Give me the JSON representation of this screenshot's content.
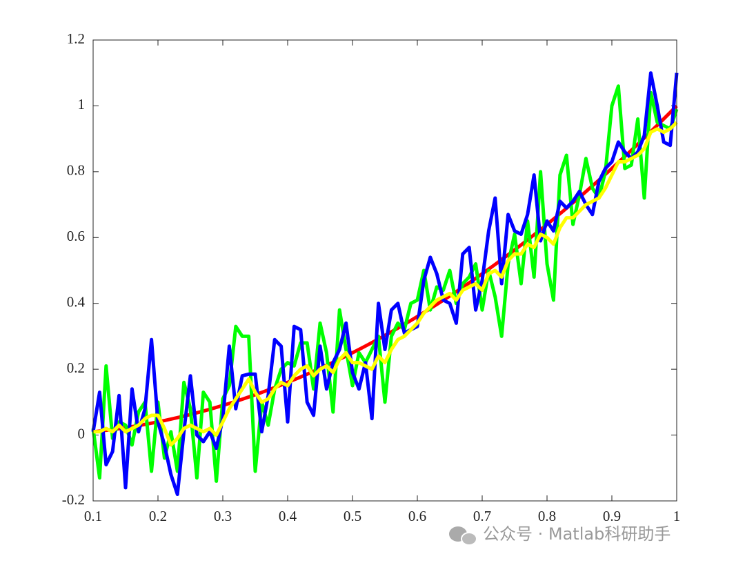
{
  "chart_data": {
    "type": "line",
    "x": [
      0.1,
      0.11,
      0.12,
      0.13,
      0.14,
      0.15,
      0.16,
      0.17,
      0.18,
      0.19,
      0.2,
      0.21,
      0.22,
      0.23,
      0.24,
      0.25,
      0.26,
      0.27,
      0.28,
      0.29,
      0.3,
      0.31,
      0.32,
      0.33,
      0.34,
      0.35,
      0.36,
      0.37,
      0.38,
      0.39,
      0.4,
      0.41,
      0.42,
      0.43,
      0.44,
      0.45,
      0.46,
      0.47,
      0.48,
      0.49,
      0.5,
      0.51,
      0.52,
      0.53,
      0.54,
      0.55,
      0.56,
      0.57,
      0.58,
      0.59,
      0.6,
      0.61,
      0.62,
      0.63,
      0.64,
      0.65,
      0.66,
      0.67,
      0.68,
      0.69,
      0.7,
      0.71,
      0.72,
      0.73,
      0.74,
      0.75,
      0.76,
      0.77,
      0.78,
      0.79,
      0.8,
      0.81,
      0.82,
      0.83,
      0.84,
      0.85,
      0.86,
      0.87,
      0.88,
      0.89,
      0.9,
      0.91,
      0.92,
      0.93,
      0.94,
      0.95,
      0.96,
      0.97,
      0.98,
      0.99,
      1
    ],
    "series": [
      {
        "color": "#ff0000",
        "values": [
          0.01,
          0.0121,
          0.0144,
          0.0169,
          0.0196,
          0.0225,
          0.0256,
          0.0289,
          0.0324,
          0.0361,
          0.04,
          0.0441,
          0.0484,
          0.0529,
          0.0576,
          0.0625,
          0.0676,
          0.0729,
          0.0784,
          0.0841,
          0.09,
          0.0961,
          0.1024,
          0.1089,
          0.1156,
          0.1225,
          0.1296,
          0.1369,
          0.1444,
          0.1521,
          0.16,
          0.1681,
          0.1764,
          0.1849,
          0.1936,
          0.2025,
          0.2116,
          0.2209,
          0.2304,
          0.2401,
          0.25,
          0.2601,
          0.2704,
          0.2809,
          0.2916,
          0.3025,
          0.3136,
          0.3249,
          0.3364,
          0.3481,
          0.36,
          0.3721,
          0.3844,
          0.3969,
          0.4096,
          0.4225,
          0.4356,
          0.4489,
          0.4624,
          0.4761,
          0.49,
          0.5041,
          0.5184,
          0.5329,
          0.5476,
          0.5625,
          0.5776,
          0.5929,
          0.6084,
          0.6241,
          0.64,
          0.6561,
          0.6724,
          0.6889,
          0.7056,
          0.7225,
          0.7396,
          0.7569,
          0.7744,
          0.7921,
          0.81,
          0.8281,
          0.8464,
          0.8649,
          0.8836,
          0.9025,
          0.9216,
          0.9409,
          0.9604,
          0.9801,
          1.0
        ]
      },
      {
        "color": "#00ff00",
        "values": [
          0.02,
          -0.13,
          0.21,
          -0.01,
          0.04,
          0.03,
          -0.03,
          0.07,
          0.1,
          -0.11,
          0.1,
          -0.07,
          0.01,
          -0.11,
          0.16,
          0.08,
          -0.13,
          0.13,
          0.1,
          -0.14,
          0.11,
          0.15,
          0.33,
          0.3,
          0.3,
          -0.11,
          0.1,
          0.03,
          0.14,
          0.2,
          0.22,
          0.21,
          0.28,
          0.28,
          0.14,
          0.34,
          0.25,
          0.07,
          0.38,
          0.26,
          0.15,
          0.25,
          0.22,
          0.26,
          0.3,
          0.1,
          0.3,
          0.34,
          0.32,
          0.4,
          0.41,
          0.5,
          0.38,
          0.45,
          0.44,
          0.5,
          0.4,
          0.46,
          0.48,
          0.52,
          0.38,
          0.5,
          0.42,
          0.3,
          0.52,
          0.61,
          0.46,
          0.65,
          0.48,
          0.8,
          0.52,
          0.41,
          0.79,
          0.85,
          0.64,
          0.73,
          0.84,
          0.75,
          0.72,
          0.8,
          1.0,
          1.06,
          0.81,
          0.82,
          0.96,
          0.72,
          1.04,
          0.95,
          0.94,
          0.93,
          0.99
        ]
      },
      {
        "color": "#0000ff",
        "values": [
          0.01,
          0.13,
          -0.09,
          -0.05,
          0.12,
          -0.16,
          0.14,
          0.01,
          0.08,
          0.29,
          0.04,
          -0.03,
          -0.12,
          -0.18,
          0.01,
          0.18,
          0.0,
          -0.02,
          0.01,
          -0.04,
          0.05,
          0.27,
          0.08,
          0.18,
          0.185,
          0.185,
          0.01,
          0.12,
          0.29,
          0.27,
          0.04,
          0.33,
          0.32,
          0.1,
          0.06,
          0.27,
          0.14,
          0.22,
          0.26,
          0.34,
          0.19,
          0.14,
          0.22,
          0.05,
          0.4,
          0.26,
          0.38,
          0.4,
          0.31,
          0.32,
          0.33,
          0.47,
          0.54,
          0.49,
          0.41,
          0.4,
          0.34,
          0.55,
          0.57,
          0.38,
          0.47,
          0.62,
          0.72,
          0.46,
          0.67,
          0.62,
          0.61,
          0.67,
          0.79,
          0.59,
          0.65,
          0.62,
          0.71,
          0.69,
          0.71,
          0.74,
          0.7,
          0.67,
          0.77,
          0.81,
          0.83,
          0.89,
          0.86,
          0.84,
          0.86,
          0.91,
          1.1,
          1.0,
          0.89,
          0.88,
          1.1
        ]
      },
      {
        "color": "#ffff00",
        "values": [
          0.01,
          0.01,
          0.02,
          0.01,
          0.03,
          0.01,
          0.02,
          0.03,
          0.05,
          0.06,
          0.06,
          0.02,
          -0.03,
          -0.01,
          0.02,
          0.03,
          0.02,
          0.01,
          0.02,
          0.0,
          0.04,
          0.08,
          0.11,
          0.14,
          0.17,
          0.13,
          0.1,
          0.11,
          0.14,
          0.16,
          0.15,
          0.18,
          0.2,
          0.21,
          0.18,
          0.2,
          0.21,
          0.19,
          0.23,
          0.25,
          0.22,
          0.22,
          0.21,
          0.2,
          0.24,
          0.22,
          0.26,
          0.29,
          0.3,
          0.32,
          0.34,
          0.37,
          0.39,
          0.41,
          0.42,
          0.43,
          0.41,
          0.44,
          0.45,
          0.46,
          0.44,
          0.49,
          0.5,
          0.48,
          0.53,
          0.55,
          0.55,
          0.58,
          0.57,
          0.61,
          0.6,
          0.58,
          0.63,
          0.66,
          0.66,
          0.68,
          0.7,
          0.71,
          0.72,
          0.75,
          0.79,
          0.83,
          0.83,
          0.84,
          0.85,
          0.87,
          0.92,
          0.93,
          0.92,
          0.93,
          0.95
        ]
      }
    ],
    "xlim": [
      0.1,
      1
    ],
    "ylim": [
      -0.2,
      1.2
    ],
    "xticks": [
      0.1,
      0.2,
      0.3,
      0.4,
      0.5,
      0.6,
      0.7,
      0.8,
      0.9,
      1
    ],
    "yticks": [
      -0.2,
      0,
      0.2,
      0.4,
      0.6,
      0.8,
      1,
      1.2
    ],
    "grid": false
  },
  "watermark": "公众号 · Matlab科研助手"
}
